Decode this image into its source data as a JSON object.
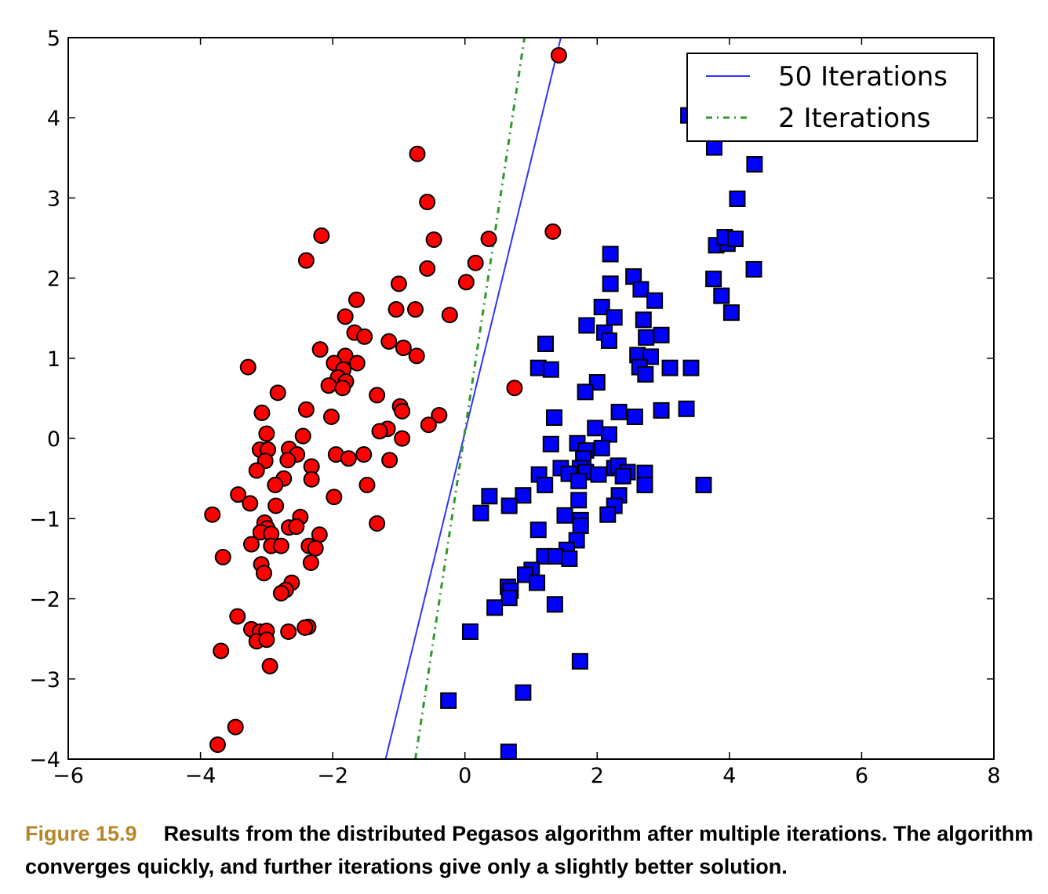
{
  "chart_data": {
    "type": "scatter",
    "title": "",
    "xlabel": "",
    "ylabel": "",
    "xlim": [
      -6,
      8
    ],
    "ylim": [
      -4,
      5
    ],
    "x_ticks": [
      -6,
      -4,
      -2,
      0,
      2,
      4,
      6,
      8
    ],
    "y_ticks": [
      -4,
      -3,
      -2,
      -1,
      0,
      1,
      2,
      3,
      4,
      5
    ],
    "x_tick_labels": [
      "−6",
      "−4",
      "−2",
      "0",
      "2",
      "4",
      "6",
      "8"
    ],
    "y_tick_labels": [
      "−4",
      "−3",
      "−2",
      "−1",
      "0",
      "1",
      "2",
      "3",
      "4",
      "5"
    ],
    "grid": false,
    "legend_position": "top-right",
    "series": [
      {
        "kind": "line",
        "name": "50 Iterations",
        "color": "#3333ff",
        "style": "solid",
        "x": [
          -1.2,
          1.45
        ],
        "y": [
          -4.0,
          5.0
        ]
      },
      {
        "kind": "line",
        "name": "2 Iterations",
        "color": "#2e9a2e",
        "style": "dash-dot",
        "x": [
          -0.75,
          0.9
        ],
        "y": [
          -4.0,
          5.0
        ]
      },
      {
        "kind": "scatter",
        "marker": "circle",
        "color": "#ff0000",
        "points": [
          [
            1.42,
            4.78
          ],
          [
            -0.72,
            3.55
          ],
          [
            -0.57,
            2.95
          ],
          [
            -2.17,
            2.53
          ],
          [
            -0.47,
            2.48
          ],
          [
            0.36,
            2.49
          ],
          [
            1.33,
            2.58
          ],
          [
            0.16,
            2.19
          ],
          [
            -2.4,
            2.22
          ],
          [
            -0.57,
            2.12
          ],
          [
            0.02,
            1.95
          ],
          [
            -1.0,
            1.93
          ],
          [
            -1.64,
            1.73
          ],
          [
            -1.04,
            1.61
          ],
          [
            -0.75,
            1.61
          ],
          [
            -0.23,
            1.54
          ],
          [
            -1.81,
            1.52
          ],
          [
            -1.67,
            1.32
          ],
          [
            -1.52,
            1.27
          ],
          [
            -1.15,
            1.21
          ],
          [
            -0.93,
            1.13
          ],
          [
            -0.73,
            1.03
          ],
          [
            -2.19,
            1.11
          ],
          [
            -1.81,
            1.03
          ],
          [
            -1.98,
            0.94
          ],
          [
            -1.63,
            0.94
          ],
          [
            -1.84,
            0.86
          ],
          [
            -3.28,
            0.89
          ],
          [
            -1.92,
            0.76
          ],
          [
            -1.8,
            0.71
          ],
          [
            -2.06,
            0.66
          ],
          [
            -1.85,
            0.63
          ],
          [
            0.75,
            0.63
          ],
          [
            -2.83,
            0.57
          ],
          [
            -1.33,
            0.54
          ],
          [
            -0.98,
            0.4
          ],
          [
            -0.95,
            0.34
          ],
          [
            -2.4,
            0.36
          ],
          [
            -3.07,
            0.32
          ],
          [
            -2.02,
            0.27
          ],
          [
            -0.39,
            0.29
          ],
          [
            -0.55,
            0.17
          ],
          [
            -1.17,
            0.12
          ],
          [
            -1.29,
            0.09
          ],
          [
            -0.95,
            0.0
          ],
          [
            -3.0,
            0.06
          ],
          [
            -2.45,
            0.03
          ],
          [
            -2.66,
            -0.13
          ],
          [
            -3.1,
            -0.14
          ],
          [
            -2.98,
            -0.14
          ],
          [
            -2.54,
            -0.2
          ],
          [
            -1.95,
            -0.2
          ],
          [
            -1.76,
            -0.25
          ],
          [
            -1.53,
            -0.2
          ],
          [
            -1.14,
            -0.27
          ],
          [
            -2.68,
            -0.27
          ],
          [
            -3.02,
            -0.28
          ],
          [
            -2.32,
            -0.35
          ],
          [
            -3.15,
            -0.4
          ],
          [
            -2.74,
            -0.5
          ],
          [
            -2.32,
            -0.51
          ],
          [
            -2.87,
            -0.58
          ],
          [
            -1.48,
            -0.58
          ],
          [
            -3.43,
            -0.7
          ],
          [
            -1.98,
            -0.73
          ],
          [
            -3.25,
            -0.81
          ],
          [
            -2.86,
            -0.84
          ],
          [
            -2.49,
            -0.98
          ],
          [
            -3.82,
            -0.95
          ],
          [
            -3.03,
            -1.05
          ],
          [
            -1.33,
            -1.06
          ],
          [
            -2.99,
            -1.12
          ],
          [
            -2.66,
            -1.11
          ],
          [
            -2.55,
            -1.1
          ],
          [
            -3.09,
            -1.17
          ],
          [
            -2.93,
            -1.19
          ],
          [
            -2.2,
            -1.2
          ],
          [
            -3.23,
            -1.32
          ],
          [
            -2.93,
            -1.34
          ],
          [
            -2.78,
            -1.34
          ],
          [
            -2.36,
            -1.34
          ],
          [
            -2.26,
            -1.37
          ],
          [
            -3.66,
            -1.48
          ],
          [
            -3.08,
            -1.57
          ],
          [
            -2.33,
            -1.55
          ],
          [
            -3.04,
            -1.68
          ],
          [
            -2.62,
            -1.8
          ],
          [
            -2.71,
            -1.89
          ],
          [
            -2.78,
            -1.93
          ],
          [
            -3.44,
            -2.22
          ],
          [
            -3.23,
            -2.38
          ],
          [
            -2.37,
            -2.35
          ],
          [
            -2.42,
            -2.36
          ],
          [
            -3.1,
            -2.41
          ],
          [
            -3.0,
            -2.4
          ],
          [
            -2.67,
            -2.41
          ],
          [
            -3.15,
            -2.53
          ],
          [
            -3.0,
            -2.51
          ],
          [
            -2.95,
            -2.84
          ],
          [
            -3.69,
            -2.65
          ],
          [
            -3.47,
            -3.6
          ],
          [
            -3.74,
            -3.82
          ]
        ]
      },
      {
        "kind": "scatter",
        "marker": "square",
        "color": "#0000ff",
        "points": [
          [
            3.38,
            4.03
          ],
          [
            3.77,
            3.63
          ],
          [
            4.38,
            3.42
          ],
          [
            4.12,
            2.99
          ],
          [
            3.8,
            2.41
          ],
          [
            3.97,
            2.43
          ],
          [
            3.93,
            2.51
          ],
          [
            4.09,
            2.49
          ],
          [
            4.37,
            2.11
          ],
          [
            2.2,
            2.3
          ],
          [
            2.2,
            1.93
          ],
          [
            2.55,
            2.02
          ],
          [
            2.66,
            1.86
          ],
          [
            3.76,
            1.99
          ],
          [
            3.88,
            1.78
          ],
          [
            2.87,
            1.72
          ],
          [
            2.07,
            1.64
          ],
          [
            4.03,
            1.57
          ],
          [
            2.26,
            1.51
          ],
          [
            2.7,
            1.48
          ],
          [
            1.84,
            1.41
          ],
          [
            2.11,
            1.32
          ],
          [
            2.18,
            1.22
          ],
          [
            2.97,
            1.29
          ],
          [
            2.74,
            1.26
          ],
          [
            1.22,
            1.18
          ],
          [
            2.61,
            1.04
          ],
          [
            2.81,
            1.02
          ],
          [
            2.64,
            0.89
          ],
          [
            2.73,
            0.8
          ],
          [
            3.1,
            0.88
          ],
          [
            3.42,
            0.88
          ],
          [
            1.11,
            0.88
          ],
          [
            1.3,
            0.86
          ],
          [
            2.0,
            0.7
          ],
          [
            1.82,
            0.58
          ],
          [
            2.97,
            0.35
          ],
          [
            3.35,
            0.37
          ],
          [
            2.33,
            0.33
          ],
          [
            2.57,
            0.27
          ],
          [
            1.35,
            0.26
          ],
          [
            1.97,
            0.13
          ],
          [
            2.18,
            0.05
          ],
          [
            1.3,
            -0.07
          ],
          [
            1.7,
            -0.06
          ],
          [
            1.83,
            -0.15
          ],
          [
            2.07,
            -0.12
          ],
          [
            1.79,
            -0.25
          ],
          [
            1.74,
            -0.37
          ],
          [
            1.45,
            -0.37
          ],
          [
            2.26,
            -0.37
          ],
          [
            2.32,
            -0.34
          ],
          [
            1.57,
            -0.44
          ],
          [
            1.83,
            -0.42
          ],
          [
            2.46,
            -0.42
          ],
          [
            2.72,
            -0.43
          ],
          [
            2.02,
            -0.45
          ],
          [
            2.39,
            -0.47
          ],
          [
            1.12,
            -0.45
          ],
          [
            1.21,
            -0.58
          ],
          [
            1.72,
            -0.53
          ],
          [
            2.72,
            -0.58
          ],
          [
            3.61,
            -0.58
          ],
          [
            2.33,
            -0.71
          ],
          [
            0.37,
            -0.72
          ],
          [
            0.88,
            -0.71
          ],
          [
            1.72,
            -0.77
          ],
          [
            0.67,
            -0.84
          ],
          [
            2.26,
            -0.84
          ],
          [
            0.24,
            -0.93
          ],
          [
            1.51,
            -0.96
          ],
          [
            2.16,
            -0.95
          ],
          [
            1.75,
            -1.02
          ],
          [
            1.75,
            -1.09
          ],
          [
            1.11,
            -1.14
          ],
          [
            1.69,
            -1.27
          ],
          [
            1.54,
            -1.39
          ],
          [
            1.2,
            -1.47
          ],
          [
            1.37,
            -1.47
          ],
          [
            1.58,
            -1.5
          ],
          [
            1.01,
            -1.64
          ],
          [
            0.91,
            -1.7
          ],
          [
            0.65,
            -1.85
          ],
          [
            0.69,
            -1.9
          ],
          [
            1.09,
            -1.8
          ],
          [
            0.67,
            -1.99
          ],
          [
            0.45,
            -2.11
          ],
          [
            1.36,
            -2.07
          ],
          [
            0.08,
            -2.41
          ],
          [
            1.74,
            -2.78
          ],
          [
            0.88,
            -3.17
          ],
          [
            -0.25,
            -3.27
          ],
          [
            0.66,
            -3.91
          ]
        ]
      }
    ]
  },
  "legend": {
    "entries": [
      "50 Iterations",
      "2 Iterations"
    ]
  },
  "caption": {
    "label": "Figure 15.9",
    "text": "Results from the distributed Pegasos algorithm after multiple iterations. The algorithm converges quickly, and further iterations give only a slightly better solution."
  }
}
